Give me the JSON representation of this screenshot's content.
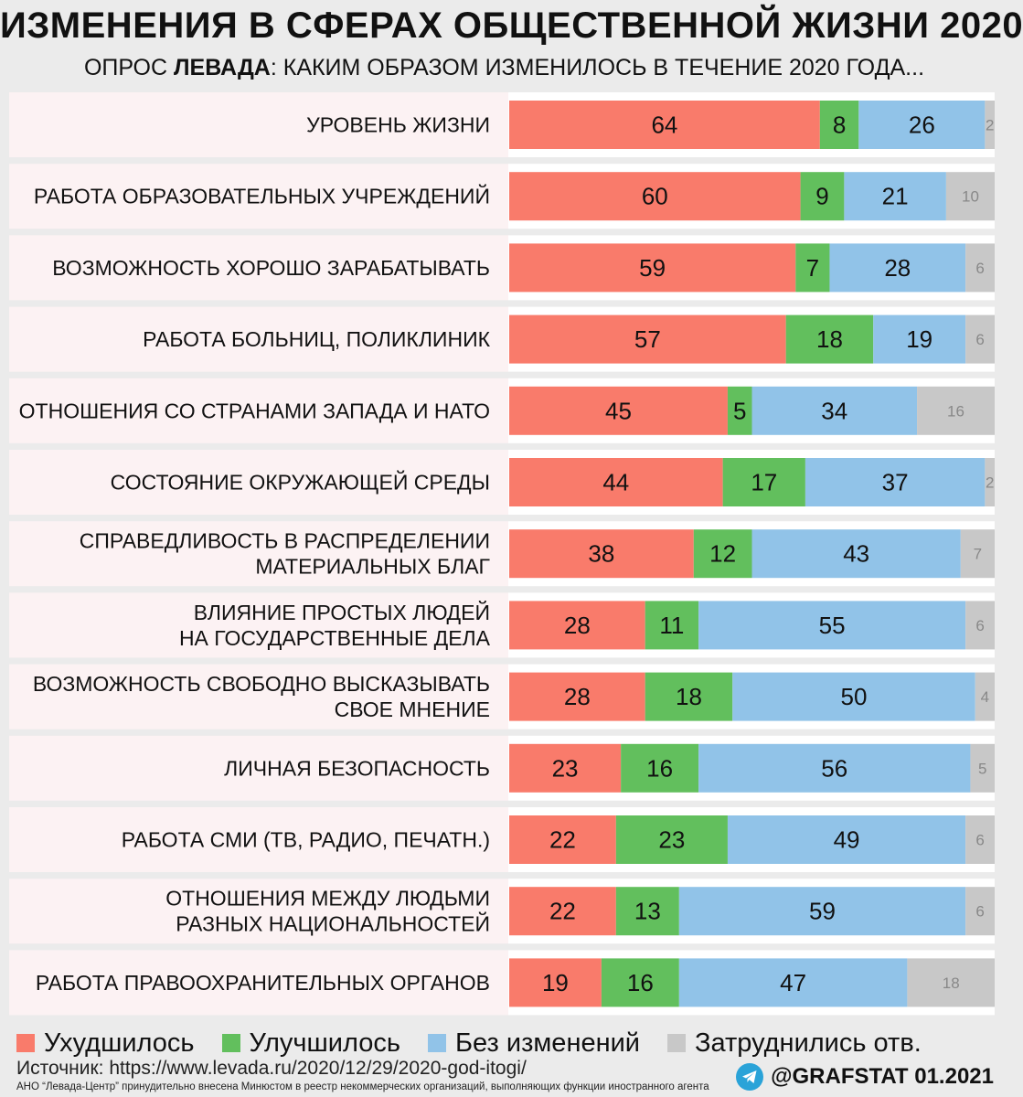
{
  "header": {
    "title": "ИЗМЕНЕНИЯ В СФЕРАХ ОБЩЕСТВЕННОЙ ЖИЗНИ 2020",
    "subtitle_prefix": "ОПРОС ",
    "subtitle_bold": "ЛЕВАДА",
    "subtitle_rest": ": КАКИМ ОБРАЗОМ ИЗМЕНИЛОСЬ В ТЕЧЕНИЕ 2020 ГОДА..."
  },
  "chart_data": {
    "type": "bar",
    "orientation": "horizontal",
    "stacked": true,
    "title": "ИЗМЕНЕНИЯ В СФЕРАХ ОБЩЕСТВЕННОЙ ЖИЗНИ 2020",
    "xlabel": "",
    "ylabel": "",
    "xlim": [
      0,
      100
    ],
    "grid": false,
    "legend_position": "bottom",
    "categories": [
      [
        "УРОВЕНЬ ЖИЗНИ"
      ],
      [
        "РАБОТА ОБРАЗОВАТЕЛЬНЫХ УЧРЕЖДЕНИЙ"
      ],
      [
        "ВОЗМОЖНОСТЬ ХОРОШО ЗАРАБАТЫВАТЬ"
      ],
      [
        "РАБОТА БОЛЬНИЦ, ПОЛИКЛИНИК"
      ],
      [
        "ОТНОШЕНИЯ СО СТРАНАМИ ЗАПАДА И НАТО"
      ],
      [
        "СОСТОЯНИЕ ОКРУЖАЮЩЕЙ СРЕДЫ"
      ],
      [
        "СПРАВЕДЛИВОСТЬ В РАСПРЕДЕЛЕНИИ",
        "МАТЕРИАЛЬНЫХ БЛАГ"
      ],
      [
        "ВЛИЯНИЕ ПРОСТЫХ ЛЮДЕЙ",
        "НА ГОСУДАРСТВЕННЫЕ ДЕЛА"
      ],
      [
        "ВОЗМОЖНОСТЬ СВОБОДНО ВЫСКАЗЫВАТЬ",
        "СВОЕ МНЕНИЕ"
      ],
      [
        "ЛИЧНАЯ БЕЗОПАСНОСТЬ"
      ],
      [
        "РАБОТА СМИ (ТВ, РАДИО, ПЕЧАТН.)"
      ],
      [
        "ОТНОШЕНИЯ МЕЖДУ ЛЮДЬМИ",
        "РАЗНЫХ НАЦИОНАЛЬНОСТЕЙ"
      ],
      [
        "РАБОТА ПРАВООХРАНИТЕЛЬНЫХ ОРГАНОВ"
      ]
    ],
    "series": [
      {
        "name": "Ухудшилось",
        "color": "#f97b6b",
        "values": [
          64,
          60,
          59,
          57,
          45,
          44,
          38,
          28,
          28,
          23,
          22,
          22,
          19
        ]
      },
      {
        "name": "Улучшилось",
        "color": "#62bf5d",
        "values": [
          8,
          9,
          7,
          18,
          5,
          17,
          12,
          11,
          18,
          16,
          23,
          13,
          16
        ]
      },
      {
        "name": "Без изменений",
        "color": "#91c3e8",
        "values": [
          26,
          21,
          28,
          19,
          34,
          37,
          43,
          55,
          50,
          56,
          49,
          59,
          47
        ]
      },
      {
        "name": "Затруднились отв.",
        "color": "#c8c8c8",
        "values": [
          2,
          10,
          6,
          6,
          16,
          2,
          7,
          6,
          4,
          5,
          6,
          6,
          18
        ]
      }
    ]
  },
  "legend": {
    "items": [
      {
        "label": "Ухудшилось",
        "color": "#f97b6b"
      },
      {
        "label": "Улучшилось",
        "color": "#62bf5d"
      },
      {
        "label": "Без изменений",
        "color": "#91c3e8"
      },
      {
        "label": "Затруднились отв.",
        "color": "#c8c8c8"
      }
    ]
  },
  "footer": {
    "source": "Источник: https://www.levada.ru/2020/12/29/2020-god-itogi/",
    "note": "АНО “Левада-Центр” принудительно внесена Минюстом в реестр некоммерческих организаций, выполняющих функции иностранного агента",
    "brand": "@GRAFSTAT 01.2021"
  }
}
